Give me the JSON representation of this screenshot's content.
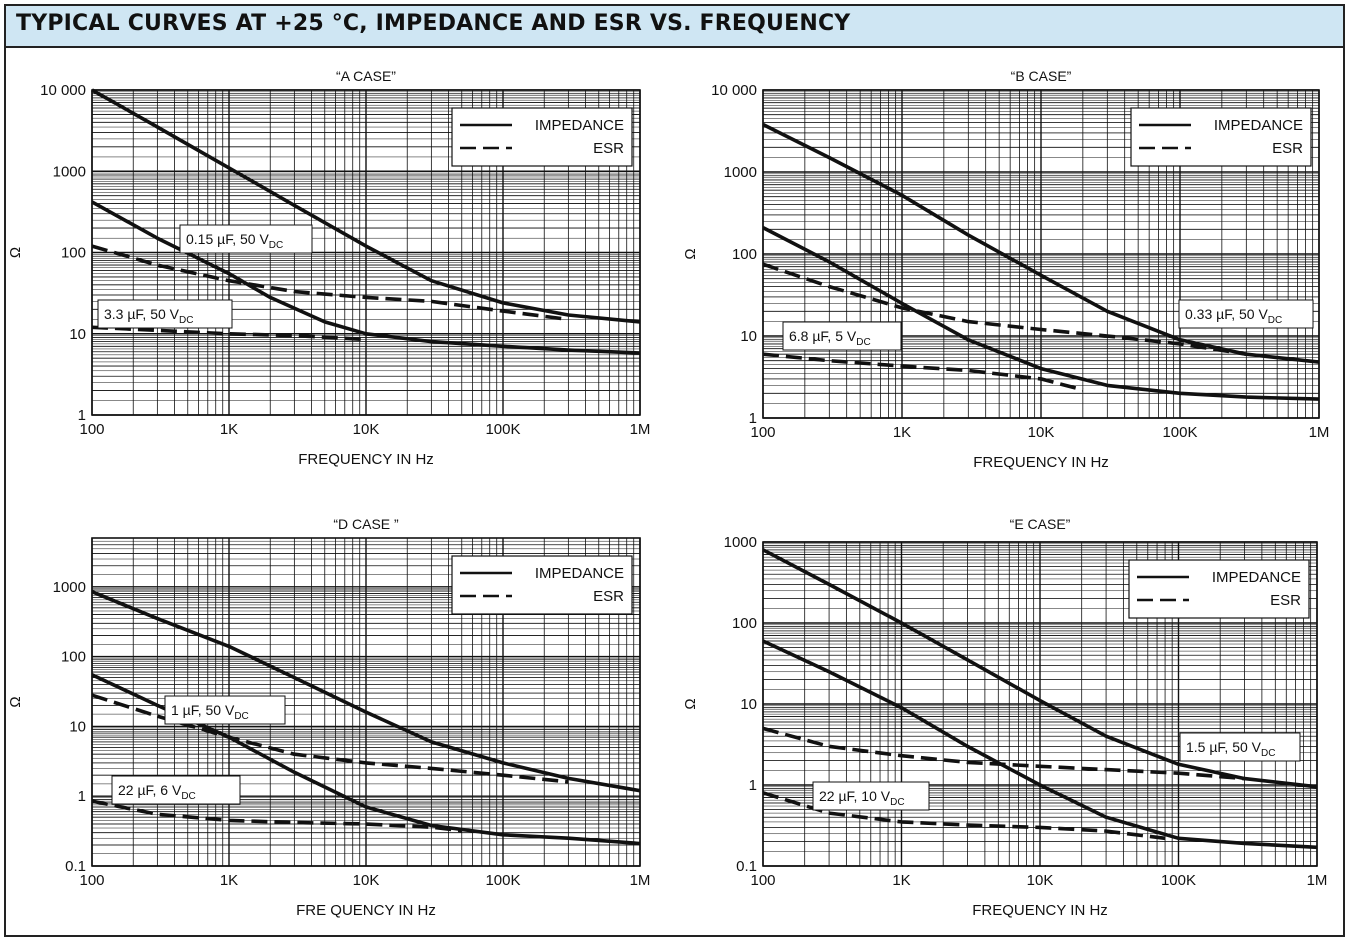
{
  "page_title": "TYPICAL CURVES AT +25 °C, IMPEDANCE AND ESR VS. FREQUENCY",
  "colors": {
    "banner_background": "#cfe6f3",
    "line": "#111111",
    "grid": "#111111"
  },
  "chart_data": [
    {
      "type": "line",
      "title": "“A CASE”",
      "xlabel": "FREQUENCY IN Hz",
      "ylabel": "Ω",
      "x_scale": "log",
      "y_scale": "log",
      "xlim": [
        100,
        1000000
      ],
      "ylim": [
        1,
        10000
      ],
      "x_ticks": [
        {
          "value": 100,
          "label": "100"
        },
        {
          "value": 1000,
          "label": "1K"
        },
        {
          "value": 10000,
          "label": "10K"
        },
        {
          "value": 100000,
          "label": "100K"
        },
        {
          "value": 1000000,
          "label": "1M"
        }
      ],
      "y_ticks": [
        {
          "value": 1,
          "label": "1"
        },
        {
          "value": 10,
          "label": "10"
        },
        {
          "value": 100,
          "label": "100"
        },
        {
          "value": 1000,
          "label": "1000"
        },
        {
          "value": 10000,
          "label": "10 000"
        }
      ],
      "grid": true,
      "legend": {
        "placement": "top-right",
        "entries": [
          {
            "label": "IMPEDANCE",
            "style": "solid"
          },
          {
            "label": "ESR",
            "style": "dashed"
          }
        ]
      },
      "annotations": [
        {
          "text": "0.15 µF, 50 V",
          "sub": "DC"
        },
        {
          "text": "3.3  µF, 50 V",
          "sub": "DC"
        }
      ],
      "series": [
        {
          "kind": "impedance",
          "style": "solid",
          "x": [
            100,
            300,
            1000,
            3000,
            10000,
            30000,
            100000,
            300000,
            1000000
          ],
          "y": [
            10000,
            3500,
            1100,
            380,
            120,
            45,
            24,
            17,
            14
          ]
        },
        {
          "kind": "impedance",
          "style": "solid",
          "x": [
            100,
            300,
            1000,
            2000,
            5000,
            10000,
            30000,
            100000,
            300000,
            1000000
          ],
          "y": [
            420,
            150,
            55,
            28,
            14,
            10,
            8,
            7,
            6.3,
            5.8
          ]
        },
        {
          "kind": "esr",
          "style": "dashed",
          "x": [
            100,
            300,
            1000,
            3000,
            10000,
            30000,
            100000,
            300000
          ],
          "y": [
            120,
            70,
            45,
            33,
            28,
            25,
            19,
            15
          ]
        },
        {
          "kind": "esr",
          "style": "dashed",
          "x": [
            100,
            300,
            1000,
            3000,
            10000
          ],
          "y": [
            12,
            11,
            10,
            9.5,
            8.5
          ]
        }
      ]
    },
    {
      "type": "line",
      "title": "“B  CASE”",
      "xlabel": "FREQUENCY IN Hz",
      "ylabel": "Ω",
      "x_scale": "log",
      "y_scale": "log",
      "xlim": [
        100,
        1000000
      ],
      "ylim": [
        1,
        10000
      ],
      "x_ticks": [
        {
          "value": 100,
          "label": "100"
        },
        {
          "value": 1000,
          "label": "1K"
        },
        {
          "value": 10000,
          "label": "10K"
        },
        {
          "value": 100000,
          "label": "100K"
        },
        {
          "value": 1000000,
          "label": "1M"
        }
      ],
      "y_ticks": [
        {
          "value": 1,
          "label": "1"
        },
        {
          "value": 10,
          "label": "10"
        },
        {
          "value": 100,
          "label": "100"
        },
        {
          "value": 1000,
          "label": "1000"
        },
        {
          "value": 10000,
          "label": "10 000"
        }
      ],
      "grid": true,
      "legend": {
        "placement": "top-right",
        "entries": [
          {
            "label": "IMPEDANCE",
            "style": "solid"
          },
          {
            "label": "ESR",
            "style": "dashed"
          }
        ]
      },
      "annotations": [
        {
          "text": "0.33 µF, 50 V",
          "sub": "DC"
        },
        {
          "text": "6.8 µF,  5 V",
          "sub": "DC"
        }
      ],
      "series": [
        {
          "kind": "impedance",
          "style": "solid",
          "x": [
            100,
            300,
            1000,
            3000,
            10000,
            30000,
            100000,
            300000,
            1000000
          ],
          "y": [
            3800,
            1500,
            520,
            170,
            55,
            20,
            9,
            6,
            4.8
          ]
        },
        {
          "kind": "impedance",
          "style": "solid",
          "x": [
            100,
            300,
            1000,
            3000,
            10000,
            30000,
            100000,
            300000,
            1000000
          ],
          "y": [
            210,
            80,
            25,
            9,
            4,
            2.5,
            2,
            1.8,
            1.7
          ]
        },
        {
          "kind": "esr",
          "style": "dashed",
          "x": [
            100,
            300,
            1000,
            3000,
            10000,
            30000,
            100000,
            300000
          ],
          "y": [
            75,
            40,
            22,
            15,
            12,
            10,
            8,
            6
          ]
        },
        {
          "kind": "esr",
          "style": "dashed",
          "x": [
            100,
            300,
            1000,
            3000,
            10000,
            20000
          ],
          "y": [
            6,
            5,
            4.3,
            3.8,
            3,
            2.2
          ]
        }
      ]
    },
    {
      "type": "line",
      "title": "“D CASE ”",
      "xlabel": "FRE QUENCY IN Hz",
      "ylabel": "Ω",
      "x_scale": "log",
      "y_scale": "log",
      "xlim": [
        100,
        1000000
      ],
      "ylim": [
        0.1,
        5000
      ],
      "x_ticks": [
        {
          "value": 100,
          "label": "100"
        },
        {
          "value": 1000,
          "label": "1K"
        },
        {
          "value": 10000,
          "label": "10K"
        },
        {
          "value": 100000,
          "label": "100K"
        },
        {
          "value": 1000000,
          "label": "1M"
        }
      ],
      "y_ticks": [
        {
          "value": 0.1,
          "label": "0.1"
        },
        {
          "value": 1,
          "label": "1"
        },
        {
          "value": 10,
          "label": "10"
        },
        {
          "value": 100,
          "label": "100"
        },
        {
          "value": 1000,
          "label": "1000"
        }
      ],
      "grid": true,
      "legend": {
        "placement": "top-right",
        "entries": [
          {
            "label": "IMPEDANCE",
            "style": "solid"
          },
          {
            "label": "ESR",
            "style": "dashed"
          }
        ]
      },
      "annotations": [
        {
          "text": "1 µF, 50 V",
          "sub": "DC"
        },
        {
          "text": "22 µF, 6 V",
          "sub": "DC"
        }
      ],
      "series": [
        {
          "kind": "impedance",
          "style": "solid",
          "x": [
            100,
            300,
            1000,
            3000,
            10000,
            30000,
            100000,
            300000,
            1000000
          ],
          "y": [
            850,
            350,
            140,
            50,
            16,
            6,
            3,
            1.8,
            1.2
          ]
        },
        {
          "kind": "impedance",
          "style": "solid",
          "x": [
            100,
            300,
            1000,
            3000,
            10000,
            30000,
            100000,
            300000,
            1000000
          ],
          "y": [
            55,
            20,
            7,
            2.2,
            0.7,
            0.38,
            0.28,
            0.25,
            0.21
          ]
        },
        {
          "kind": "esr",
          "style": "dashed",
          "x": [
            100,
            300,
            1000,
            3000,
            10000,
            30000,
            100000,
            300000
          ],
          "y": [
            28,
            14,
            7,
            4,
            3,
            2.5,
            2,
            1.6
          ]
        },
        {
          "kind": "esr",
          "style": "dashed",
          "x": [
            100,
            300,
            1000,
            3000,
            10000,
            30000,
            50000
          ],
          "y": [
            0.85,
            0.55,
            0.45,
            0.42,
            0.4,
            0.36,
            0.32
          ]
        }
      ]
    },
    {
      "type": "line",
      "title": "“E CASE”",
      "xlabel": "FREQUENCY IN Hz",
      "ylabel": "Ω",
      "x_scale": "log",
      "y_scale": "log",
      "xlim": [
        100,
        1000000
      ],
      "ylim": [
        0.1,
        1000
      ],
      "x_ticks": [
        {
          "value": 100,
          "label": "100"
        },
        {
          "value": 1000,
          "label": "1K"
        },
        {
          "value": 10000,
          "label": "10K"
        },
        {
          "value": 100000,
          "label": "100K"
        },
        {
          "value": 1000000,
          "label": "1M"
        }
      ],
      "y_ticks": [
        {
          "value": 0.1,
          "label": "0.1"
        },
        {
          "value": 1,
          "label": "1"
        },
        {
          "value": 10,
          "label": "10"
        },
        {
          "value": 100,
          "label": "100"
        },
        {
          "value": 1000,
          "label": "1000"
        }
      ],
      "grid": true,
      "legend": {
        "placement": "top-right",
        "entries": [
          {
            "label": "IMPEDANCE",
            "style": "solid"
          },
          {
            "label": "ESR",
            "style": "dashed"
          }
        ]
      },
      "annotations": [
        {
          "text": "1.5 µF, 50 V",
          "sub": "DC"
        },
        {
          "text": "22 µF, 10 V",
          "sub": "DC"
        }
      ],
      "series": [
        {
          "kind": "impedance",
          "style": "solid",
          "x": [
            100,
            300,
            1000,
            3000,
            10000,
            30000,
            100000,
            300000,
            1000000
          ],
          "y": [
            800,
            300,
            100,
            35,
            11,
            4,
            1.8,
            1.2,
            0.95
          ]
        },
        {
          "kind": "impedance",
          "style": "solid",
          "x": [
            100,
            300,
            1000,
            3000,
            10000,
            30000,
            100000,
            300000,
            1000000
          ],
          "y": [
            60,
            25,
            9,
            3,
            1,
            0.4,
            0.22,
            0.19,
            0.17
          ]
        },
        {
          "kind": "esr",
          "style": "dashed",
          "x": [
            100,
            300,
            1000,
            3000,
            10000,
            30000,
            100000,
            300000
          ],
          "y": [
            5,
            3,
            2.3,
            1.9,
            1.7,
            1.55,
            1.4,
            1.2
          ]
        },
        {
          "kind": "esr",
          "style": "dashed",
          "x": [
            100,
            300,
            1000,
            3000,
            10000,
            30000,
            80000
          ],
          "y": [
            0.8,
            0.45,
            0.35,
            0.32,
            0.3,
            0.27,
            0.22
          ]
        }
      ]
    }
  ]
}
